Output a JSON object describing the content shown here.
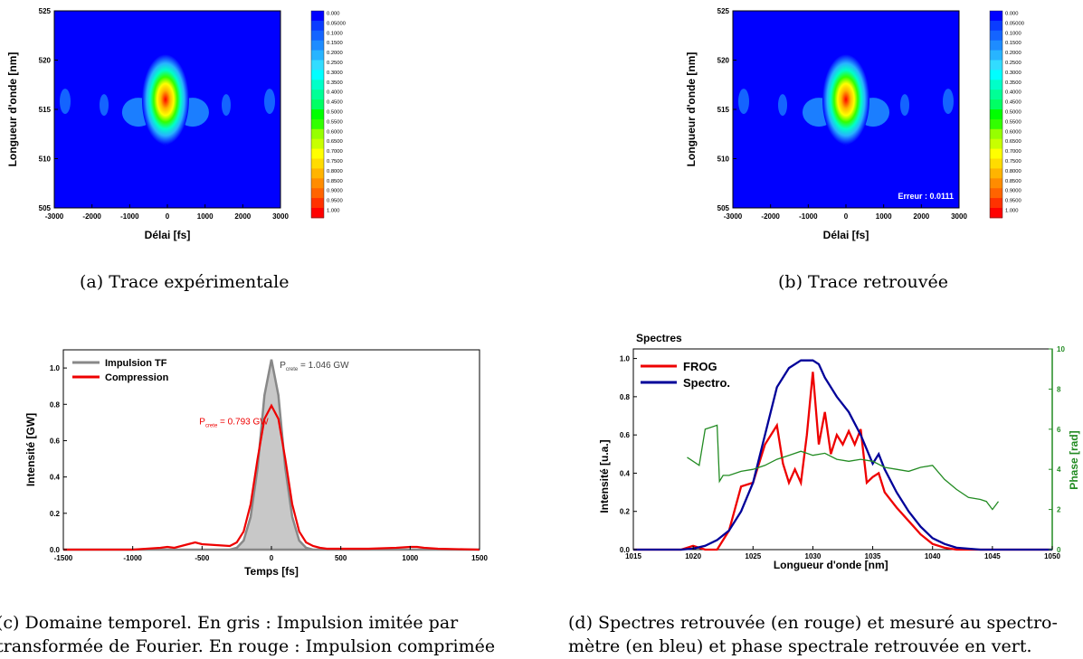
{
  "chart_data": [
    {
      "type": "heatmap",
      "panel": "a",
      "caption": "(a) Trace expérimentale",
      "xlabel": "Délai [fs]",
      "ylabel": "Longueur d'onde [nm]",
      "xlim": [
        -3000,
        3000
      ],
      "ylim": [
        505,
        525
      ],
      "x_ticks": [
        "-3000",
        "-2000",
        "-1000",
        "0",
        "1000",
        "2000",
        "3000"
      ],
      "y_ticks": [
        "505",
        "510",
        "515",
        "520",
        "525"
      ],
      "colorbar_labels": [
        "0.000",
        "0.05000",
        "0.1000",
        "0.1500",
        "0.2000",
        "0.2500",
        "0.3000",
        "0.3500",
        "0.4000",
        "0.4500",
        "0.5000",
        "0.5500",
        "0.6000",
        "0.6500",
        "0.7000",
        "0.7500",
        "0.8000",
        "0.8500",
        "0.9000",
        "0.9500",
        "1.000"
      ],
      "colorbar_colors": [
        "#0000ff",
        "#0a3cff",
        "#1464ff",
        "#1e8cff",
        "#28b4ff",
        "#32dcff",
        "#00ffff",
        "#00ffc8",
        "#00ff96",
        "#00ff64",
        "#00ff00",
        "#32ff00",
        "#96ff00",
        "#c8ff00",
        "#ffff00",
        "#ffdc00",
        "#ffb400",
        "#ff8c00",
        "#ff6400",
        "#ff3200",
        "#ff0000"
      ],
      "peak": {
        "x": -50,
        "y": 516,
        "value": 1.0
      },
      "error_label": ""
    },
    {
      "type": "heatmap",
      "panel": "b",
      "caption": "(b) Trace retrouvée",
      "xlabel": "Délai [fs]",
      "ylabel": "Longueur d'onde [nm]",
      "xlim": [
        -3000,
        3000
      ],
      "ylim": [
        505,
        525
      ],
      "x_ticks": [
        "-3000",
        "-2000",
        "-1000",
        "0",
        "1000",
        "2000",
        "3000"
      ],
      "y_ticks": [
        "505",
        "510",
        "515",
        "520",
        "525"
      ],
      "colorbar_labels": [
        "0.000",
        "0.05000",
        "0.1000",
        "0.1500",
        "0.2000",
        "0.2500",
        "0.3000",
        "0.3500",
        "0.4000",
        "0.4500",
        "0.5000",
        "0.5500",
        "0.6000",
        "0.6500",
        "0.7000",
        "0.7500",
        "0.8000",
        "0.8500",
        "0.9000",
        "0.9500",
        "1.000"
      ],
      "colorbar_colors": [
        "#0000ff",
        "#0a3cff",
        "#1464ff",
        "#1e8cff",
        "#28b4ff",
        "#32dcff",
        "#00ffff",
        "#00ffc8",
        "#00ff96",
        "#00ff64",
        "#00ff00",
        "#32ff00",
        "#96ff00",
        "#c8ff00",
        "#ffff00",
        "#ffdc00",
        "#ffb400",
        "#ff8c00",
        "#ff6400",
        "#ff3200",
        "#ff0000"
      ],
      "peak": {
        "x": 0,
        "y": 516,
        "value": 1.0
      },
      "error_label": "Erreur : 0.0111"
    },
    {
      "type": "area",
      "panel": "c",
      "caption": [
        "(c) Domaine temporel. En gris : Impulsion imitée par",
        "transformée de Fourier. En rouge : Impulsion comprimée"
      ],
      "xlabel": "Temps  [fs]",
      "ylabel": "Intensité  [GW]",
      "xlim": [
        -1500,
        1500
      ],
      "ylim": [
        0,
        1.1
      ],
      "x_ticks": [
        "-1500",
        "-1000",
        "-500",
        "0",
        "500",
        "1000",
        "1500"
      ],
      "y_ticks": [
        "0.0",
        "0.2",
        "0.4",
        "0.6",
        "0.8",
        "1.0"
      ],
      "legend": [
        "Impulsion TF",
        "Compression"
      ],
      "annotations": [
        {
          "prefix": "P",
          "sub": "crete",
          "value": " = 1.046 GW",
          "color": "#444444"
        },
        {
          "prefix": "P",
          "sub": "crete",
          "value": " = 0.793 GW",
          "color": "#ee0000"
        }
      ],
      "series": [
        {
          "name": "Impulsion TF",
          "color": "#888888",
          "x": [
            -1500,
            -300,
            -250,
            -200,
            -150,
            -100,
            -50,
            0,
            50,
            100,
            150,
            200,
            250,
            300,
            1500
          ],
          "values": [
            0,
            0,
            0.01,
            0.05,
            0.18,
            0.45,
            0.85,
            1.046,
            0.85,
            0.45,
            0.18,
            0.05,
            0.01,
            0,
            0
          ]
        },
        {
          "name": "Compression",
          "color": "#ee0000",
          "x": [
            -1500,
            -1000,
            -800,
            -750,
            -700,
            -600,
            -550,
            -500,
            -400,
            -300,
            -250,
            -200,
            -150,
            -100,
            -50,
            0,
            50,
            100,
            150,
            200,
            250,
            300,
            350,
            400,
            500,
            700,
            900,
            1000,
            1050,
            1100,
            1200,
            1500
          ],
          "values": [
            0,
            0,
            0.01,
            0.015,
            0.01,
            0.03,
            0.04,
            0.03,
            0.025,
            0.02,
            0.04,
            0.1,
            0.25,
            0.5,
            0.72,
            0.793,
            0.72,
            0.5,
            0.25,
            0.1,
            0.04,
            0.02,
            0.01,
            0.005,
            0.005,
            0.005,
            0.01,
            0.015,
            0.015,
            0.01,
            0.005,
            0
          ]
        }
      ]
    },
    {
      "type": "line",
      "panel": "d",
      "caption": [
        "(d) Spectres retrouvée (en rouge) et mesuré au spectro-",
        "mètre (en bleu) et phase spectrale retrouvée en vert."
      ],
      "title": "Spectres",
      "xlabel": "Longueur d'onde  [nm]",
      "ylabel": "Intensité  [u.a.]",
      "y2label": "Phase  [rad]",
      "xlim": [
        1015,
        1050
      ],
      "ylim": [
        0,
        1.05
      ],
      "y2lim": [
        0,
        10
      ],
      "x_ticks": [
        "1015",
        "1020",
        "1025",
        "1030",
        "1035",
        "1040",
        "1045",
        "1050"
      ],
      "y_ticks": [
        "0.0",
        "0.2",
        "0.4",
        "0.6",
        "0.8",
        "1.0"
      ],
      "y2_ticks": [
        "0",
        "2",
        "4",
        "6",
        "8",
        "10"
      ],
      "legend": [
        "FROG",
        "Spectro."
      ],
      "series": [
        {
          "name": "FROG",
          "color": "#ee0000",
          "axis": "left",
          "x": [
            1015,
            1019,
            1020,
            1021,
            1022,
            1023,
            1024,
            1025,
            1026,
            1026.5,
            1027,
            1027.5,
            1028,
            1028.5,
            1029,
            1029.5,
            1030,
            1030.5,
            1031,
            1031.5,
            1032,
            1032.5,
            1033,
            1033.5,
            1034,
            1034.5,
            1035,
            1035.5,
            1036,
            1037,
            1038,
            1039,
            1040,
            1041,
            1042,
            1050
          ],
          "values": [
            0,
            0,
            0.02,
            0,
            0,
            0.1,
            0.33,
            0.35,
            0.55,
            0.6,
            0.65,
            0.45,
            0.35,
            0.42,
            0.35,
            0.6,
            0.93,
            0.55,
            0.72,
            0.5,
            0.6,
            0.55,
            0.62,
            0.55,
            0.63,
            0.35,
            0.38,
            0.4,
            0.3,
            0.22,
            0.15,
            0.08,
            0.03,
            0.01,
            0,
            0
          ]
        },
        {
          "name": "Spectro.",
          "color": "#000099",
          "axis": "left",
          "x": [
            1015,
            1019,
            1020,
            1021,
            1022,
            1023,
            1024,
            1025,
            1026,
            1027,
            1028,
            1029,
            1030,
            1030.5,
            1031,
            1032,
            1033,
            1034,
            1035,
            1035.5,
            1036,
            1037,
            1038,
            1039,
            1040,
            1041,
            1042,
            1044,
            1050
          ],
          "values": [
            0,
            0,
            0.005,
            0.02,
            0.05,
            0.1,
            0.2,
            0.35,
            0.6,
            0.85,
            0.95,
            0.99,
            0.99,
            0.97,
            0.9,
            0.8,
            0.72,
            0.6,
            0.45,
            0.5,
            0.42,
            0.3,
            0.2,
            0.12,
            0.06,
            0.03,
            0.01,
            0,
            0
          ]
        },
        {
          "name": "",
          "color": "#228b22",
          "axis": "right",
          "x": [
            1019.5,
            1020.5,
            1021,
            1021.5,
            1022,
            1022.2,
            1022.5,
            1023,
            1024,
            1025,
            1026,
            1027,
            1028,
            1029,
            1030,
            1031,
            1032,
            1033,
            1034,
            1035,
            1036,
            1037,
            1038,
            1039,
            1040,
            1041,
            1042,
            1043,
            1044,
            1044.5,
            1045,
            1045.5
          ],
          "values": [
            4.6,
            4.2,
            6.0,
            6.1,
            6.2,
            3.4,
            3.7,
            3.7,
            3.9,
            4.0,
            4.2,
            4.5,
            4.7,
            4.9,
            4.7,
            4.8,
            4.5,
            4.4,
            4.5,
            4.4,
            4.1,
            4.0,
            3.9,
            4.1,
            4.2,
            3.5,
            3.0,
            2.6,
            2.5,
            2.4,
            2.0,
            2.4
          ]
        }
      ]
    }
  ]
}
